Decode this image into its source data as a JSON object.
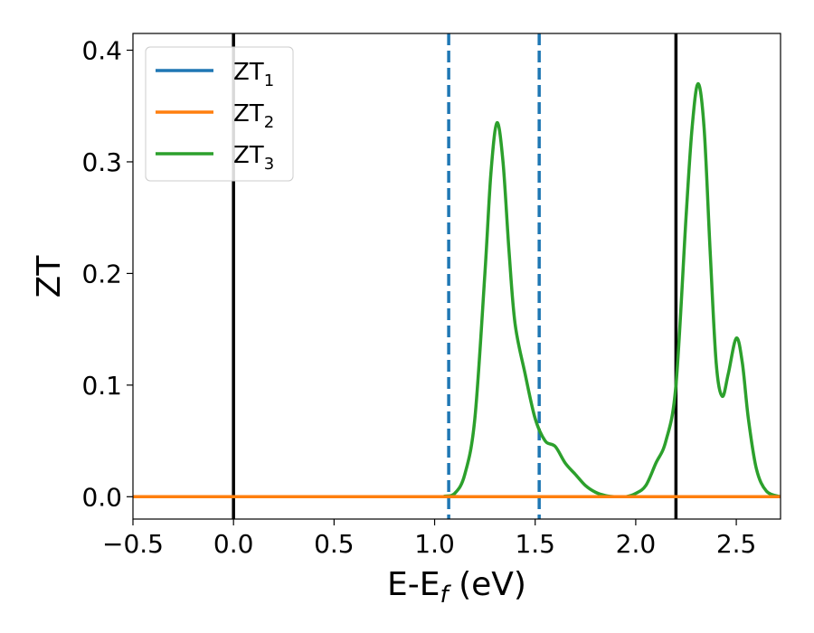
{
  "chart_data": {
    "type": "line",
    "xlabel": "E-E",
    "xlabel_sub": "f",
    "xlabel_unit": " (eV)",
    "ylabel": "ZT",
    "xlim": [
      -0.5,
      2.72
    ],
    "ylim": [
      -0.02,
      0.415
    ],
    "xticks": [
      -0.5,
      0.0,
      0.5,
      1.0,
      1.5,
      2.0,
      2.5
    ],
    "xtick_labels": [
      "−0.5",
      "0.0",
      "0.5",
      "1.0",
      "1.5",
      "2.0",
      "2.5"
    ],
    "yticks": [
      0.0,
      0.1,
      0.2,
      0.3,
      0.4
    ],
    "ytick_labels": [
      "0.0",
      "0.1",
      "0.2",
      "0.3",
      "0.4"
    ],
    "legend_position": "top-left",
    "series": [
      {
        "name": "ZT",
        "sub": "1",
        "color": "#1f77b4",
        "x": [
          -0.5,
          2.72
        ],
        "y": [
          0.0,
          0.0
        ]
      },
      {
        "name": "ZT",
        "sub": "2",
        "color": "#ff7f0e",
        "x": [
          -0.5,
          2.72
        ],
        "y": [
          0.0,
          0.0
        ]
      },
      {
        "name": "ZT",
        "sub": "3",
        "color": "#2ca02c",
        "x": [
          -0.5,
          1.0,
          1.05,
          1.1,
          1.15,
          1.2,
          1.25,
          1.28,
          1.31,
          1.34,
          1.37,
          1.4,
          1.45,
          1.5,
          1.55,
          1.6,
          1.65,
          1.7,
          1.75,
          1.8,
          1.85,
          1.9,
          1.95,
          2.0,
          2.05,
          2.1,
          2.15,
          2.2,
          2.25,
          2.28,
          2.31,
          2.34,
          2.37,
          2.4,
          2.43,
          2.46,
          2.5,
          2.53,
          2.56,
          2.6,
          2.65,
          2.72
        ],
        "y": [
          0.0,
          0.0,
          0.0005,
          0.003,
          0.02,
          0.07,
          0.2,
          0.29,
          0.335,
          0.3,
          0.22,
          0.155,
          0.11,
          0.07,
          0.05,
          0.045,
          0.03,
          0.02,
          0.01,
          0.004,
          0.001,
          0.0,
          0.0,
          0.003,
          0.01,
          0.03,
          0.05,
          0.1,
          0.25,
          0.33,
          0.37,
          0.33,
          0.22,
          0.12,
          0.09,
          0.11,
          0.142,
          0.12,
          0.07,
          0.025,
          0.005,
          0.0
        ]
      }
    ],
    "vlines": [
      {
        "x": 0.0,
        "style": "solid",
        "color": "#000000"
      },
      {
        "x": 1.07,
        "style": "dashed",
        "color": "#1f77b4"
      },
      {
        "x": 1.52,
        "style": "dashed",
        "color": "#1f77b4"
      },
      {
        "x": 2.2,
        "style": "solid",
        "color": "#000000"
      }
    ]
  }
}
